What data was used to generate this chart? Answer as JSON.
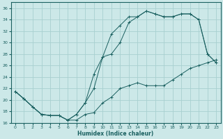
{
  "xlabel": "Humidex (Indice chaleur)",
  "bg_color": "#cce8e8",
  "grid_color": "#a8d0d0",
  "line_color": "#1a6060",
  "xlim": [
    -0.5,
    23.5
  ],
  "ylim": [
    16,
    37
  ],
  "xticks": [
    0,
    1,
    2,
    3,
    4,
    5,
    6,
    7,
    8,
    9,
    10,
    11,
    12,
    13,
    14,
    15,
    16,
    17,
    18,
    19,
    20,
    21,
    22,
    23
  ],
  "yticks": [
    16,
    18,
    20,
    22,
    24,
    26,
    28,
    30,
    32,
    34,
    36
  ],
  "line1_x": [
    0,
    1,
    2,
    3,
    4,
    5,
    6,
    7,
    8,
    9,
    10,
    11,
    12,
    13,
    14,
    15,
    16,
    17,
    18,
    19,
    20,
    21,
    22,
    23
  ],
  "line1_y": [
    21.5,
    20.2,
    18.8,
    17.5,
    17.3,
    17.3,
    16.5,
    16.5,
    17.5,
    17.8,
    19.5,
    20.5,
    22.0,
    22.5,
    23.0,
    22.5,
    22.5,
    22.5,
    23.5,
    24.5,
    25.5,
    26.0,
    26.5,
    27.0
  ],
  "line2_x": [
    0,
    1,
    2,
    3,
    4,
    5,
    6,
    7,
    8,
    9,
    10,
    11,
    12,
    13,
    14,
    15,
    16,
    17,
    18,
    19,
    20,
    21,
    22,
    23
  ],
  "line2_y": [
    21.5,
    20.2,
    18.8,
    17.5,
    17.3,
    17.3,
    16.5,
    17.5,
    19.5,
    22.0,
    27.5,
    28.0,
    30.0,
    33.5,
    34.5,
    35.5,
    35.0,
    34.5,
    34.5,
    35.0,
    35.0,
    34.0,
    28.0,
    26.5
  ],
  "line3_x": [
    0,
    1,
    2,
    3,
    4,
    5,
    6,
    7,
    8,
    9,
    10,
    11,
    12,
    13,
    14,
    15,
    16,
    17,
    18,
    19,
    20,
    21,
    22,
    23
  ],
  "line3_y": [
    21.5,
    20.2,
    18.8,
    17.5,
    17.3,
    17.3,
    16.5,
    17.5,
    19.5,
    24.5,
    27.5,
    31.5,
    33.0,
    34.5,
    34.5,
    35.5,
    35.0,
    34.5,
    34.5,
    35.0,
    35.0,
    34.0,
    28.0,
    26.5
  ]
}
